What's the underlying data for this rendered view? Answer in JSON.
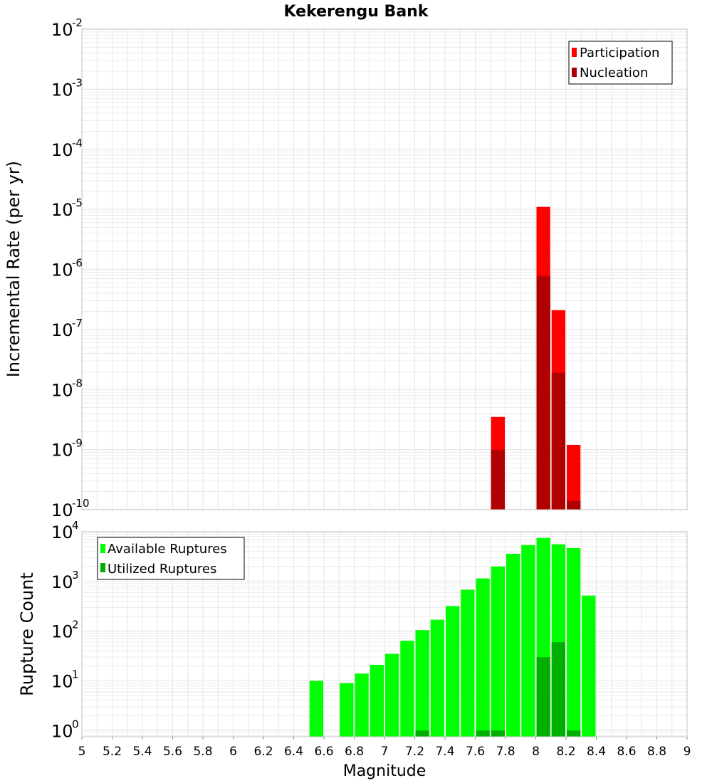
{
  "colors": {
    "participation": "#ff0000",
    "nucleation": "#b00000",
    "available": "#00ff00",
    "utilized": "#00b000",
    "grid": "#e6e6e6",
    "frame": "#c0c0c0"
  },
  "chart_data": [
    {
      "type": "bar",
      "title": "Kekerengu Bank",
      "xlabel": "",
      "ylabel": "Incremental Rate (per yr)",
      "yscale": "log",
      "xlim": [
        5,
        9
      ],
      "ylim": [
        1e-10,
        0.01
      ],
      "ytick_exponents": [
        "-10",
        "-9",
        "-8",
        "-7",
        "-6",
        "-5",
        "-4",
        "-3",
        "-2"
      ],
      "ytick_base": "10",
      "bar_width": 0.1,
      "grid": true,
      "legend_position": "top-right",
      "series": [
        {
          "name": "Participation",
          "color_key": "participation",
          "x": [
            7.75,
            8.05,
            8.15,
            8.25
          ],
          "values": [
            3.5e-09,
            1.1e-05,
            2.1e-07,
            1.2e-09
          ]
        },
        {
          "name": "Nucleation",
          "color_key": "nucleation",
          "x": [
            7.75,
            8.05,
            8.15,
            8.25
          ],
          "values": [
            1e-09,
            7.8e-07,
            1.9e-08,
            1.4e-10
          ]
        }
      ]
    },
    {
      "type": "bar",
      "title": "",
      "xlabel": "Magnitude",
      "ylabel": "Rupture Count",
      "yscale": "log",
      "xlim": [
        5,
        9
      ],
      "ylim": [
        0.75,
        10000
      ],
      "ytick_exponents": [
        "0",
        "1",
        "2",
        "3",
        "4"
      ],
      "ytick_base": "10",
      "xticks": [
        "5",
        "5.2",
        "5.4",
        "5.6",
        "5.8",
        "6",
        "6.2",
        "6.4",
        "6.6",
        "6.8",
        "7",
        "7.2",
        "7.4",
        "7.6",
        "7.8",
        "8",
        "8.2",
        "8.4",
        "8.6",
        "8.8",
        "9"
      ],
      "bar_width": 0.1,
      "grid": true,
      "legend_position": "top-left",
      "series": [
        {
          "name": "Available Ruptures",
          "color_key": "available",
          "x": [
            6.55,
            6.75,
            6.85,
            6.95,
            7.05,
            7.15,
            7.25,
            7.35,
            7.45,
            7.55,
            7.65,
            7.75,
            7.85,
            7.95,
            8.05,
            8.15,
            8.25,
            8.35
          ],
          "values": [
            10,
            9,
            14,
            21,
            35,
            64,
            105,
            170,
            320,
            680,
            1150,
            2000,
            3600,
            5400,
            7500,
            5600,
            4700,
            520
          ]
        },
        {
          "name": "Utilized Ruptures",
          "color_key": "utilized",
          "x": [
            7.25,
            7.65,
            7.75,
            8.05,
            8.15,
            8.25
          ],
          "values": [
            1,
            1,
            1,
            30,
            60,
            1
          ]
        }
      ]
    }
  ]
}
